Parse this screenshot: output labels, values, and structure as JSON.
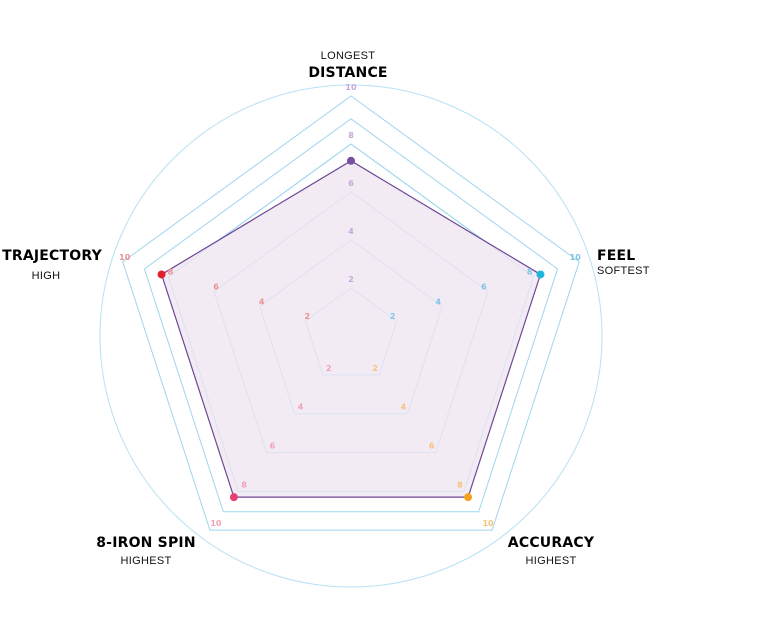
{
  "chart_data": {
    "type": "radar",
    "rlim": [
      0,
      10
    ],
    "rings": [
      2,
      4,
      6,
      8,
      10
    ],
    "axes": [
      {
        "name": "DISTANCE",
        "sub": "LONGEST",
        "value": 7.3,
        "color": "#7b4fa0",
        "tick_color": "#c7a7d8"
      },
      {
        "name": "FEEL",
        "sub": "SOFTEST",
        "value": 8.3,
        "color": "#1fb6dc",
        "tick_color": "#7fc3e6"
      },
      {
        "name": "ACCURACY",
        "sub": "HIGHEST",
        "value": 8.3,
        "color": "#f5a21d",
        "tick_color": "#f6c27a"
      },
      {
        "name": "8-IRON SPIN",
        "sub": "HIGHEST",
        "value": 8.3,
        "color": "#e83e73",
        "tick_color": "#f2a0b8"
      },
      {
        "name": "TRAJECTORY",
        "sub": "HIGH",
        "value": 8.3,
        "color": "#e0202e",
        "tick_color": "#ef8f8f"
      }
    ],
    "tick_labels": [
      "2",
      "4",
      "6",
      "8",
      "10"
    ],
    "colors": {
      "grid": "#9fd6ee",
      "outer_circle": "#b8e1f2",
      "fill": "#efe6f1",
      "outline": "#6e4796"
    }
  }
}
